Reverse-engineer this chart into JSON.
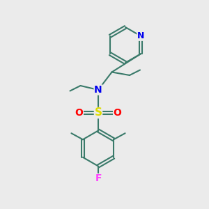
{
  "bg_color": "#ebebeb",
  "bond_color": "#3a7a6a",
  "N_color": "#0000ee",
  "S_color": "#dddd00",
  "O_color": "#ff0000",
  "F_color": "#ff44ff",
  "line_width": 1.5,
  "dpi": 100,
  "fig_size": [
    3.0,
    3.0
  ],
  "xlim": [
    0,
    10
  ],
  "ylim": [
    0,
    10
  ]
}
